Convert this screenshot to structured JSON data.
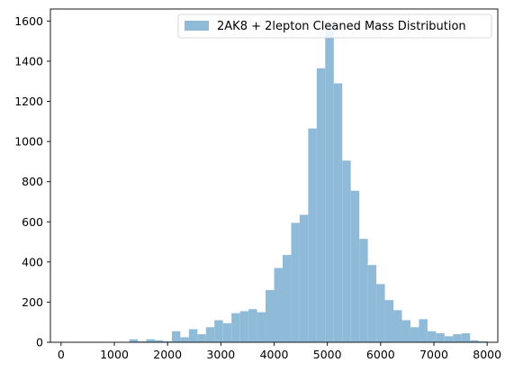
{
  "chart_data": {
    "type": "bar",
    "title": "",
    "xlabel": "",
    "ylabel": "",
    "xlim": [
      -200,
      8200
    ],
    "ylim": [
      0,
      1660
    ],
    "x_ticks": [
      "0",
      "1000",
      "2000",
      "3000",
      "4000",
      "5000",
      "6000",
      "7000",
      "8000"
    ],
    "y_ticks": [
      "0",
      "200",
      "400",
      "600",
      "800",
      "1000",
      "1200",
      "1400",
      "1600"
    ],
    "bin_width": 160,
    "bin_starts": [
      0,
      160,
      320,
      480,
      640,
      800,
      960,
      1120,
      1280,
      1440,
      1600,
      1760,
      1920,
      2080,
      2240,
      2400,
      2560,
      2720,
      2880,
      3040,
      3200,
      3360,
      3520,
      3680,
      3840,
      4000,
      4160,
      4320,
      4480,
      4640,
      4800,
      4960,
      5120,
      5280,
      5440,
      5600,
      5760,
      5920,
      6080,
      6240,
      6400,
      6560,
      6720,
      6880,
      7040,
      7200,
      7360,
      7520,
      7680,
      7840
    ],
    "values": [
      0,
      0,
      0,
      0,
      0,
      0,
      0,
      0,
      15,
      5,
      15,
      10,
      5,
      55,
      25,
      65,
      40,
      75,
      110,
      95,
      145,
      155,
      165,
      150,
      260,
      370,
      435,
      595,
      635,
      1065,
      1365,
      1590,
      1290,
      905,
      755,
      515,
      385,
      290,
      210,
      160,
      110,
      75,
      115,
      55,
      45,
      30,
      40,
      45,
      10,
      5
    ],
    "color": "#8fbbd9",
    "legend": {
      "position": "top-right",
      "entries": [
        "2AK8 + 2lepton Cleaned Mass Distribution"
      ]
    }
  }
}
